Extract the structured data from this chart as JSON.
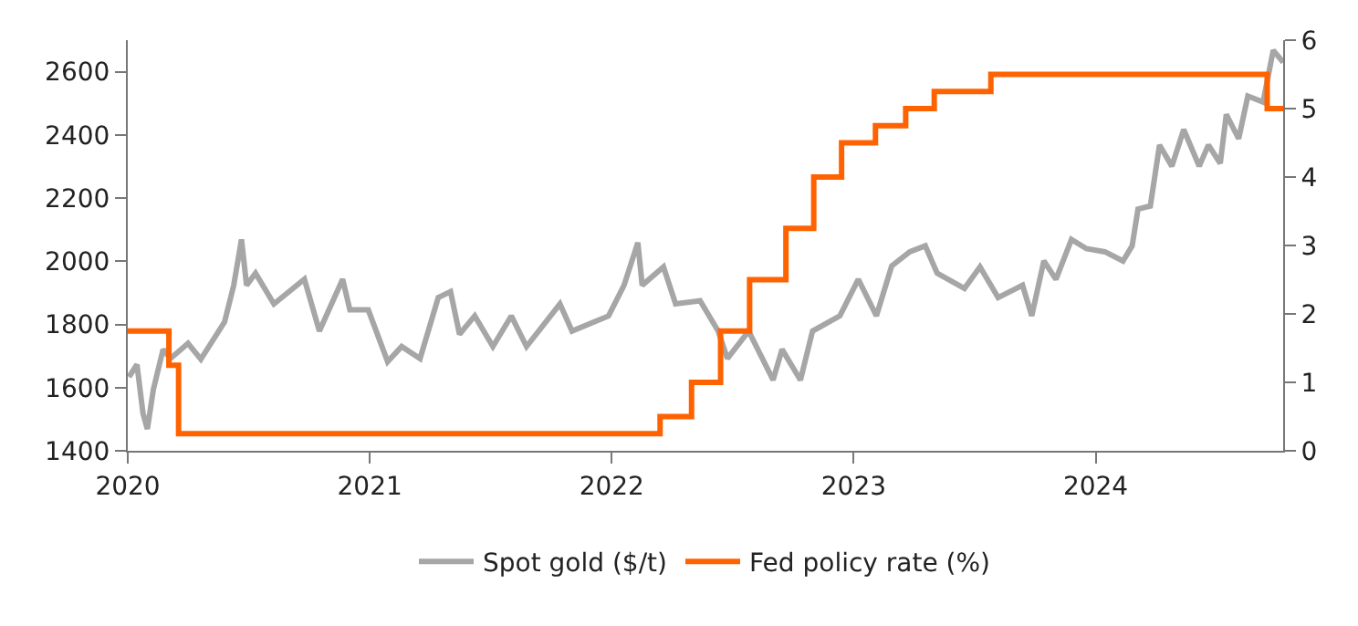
{
  "chart_data": {
    "type": "line",
    "xlim": [
      2020,
      2024.775
    ],
    "xticks": [
      2020,
      2021,
      2022,
      2023,
      2024
    ],
    "ylim": [
      1400,
      2700
    ],
    "yticks": [
      1400,
      1600,
      1800,
      2000,
      2200,
      2400,
      2600
    ],
    "y2lim": [
      0,
      6
    ],
    "y2ticks": [
      0,
      1,
      2,
      3,
      4,
      5,
      6
    ],
    "legend": "bottom",
    "line_style": "solid",
    "series": [
      {
        "name": "Spot gold ($/t)",
        "color": "#a6a6a6",
        "x": [
          2020.005,
          2020.038,
          2020.063,
          2020.081,
          2020.106,
          2020.146,
          2020.176,
          2020.249,
          2020.302,
          2020.4,
          2020.438,
          2020.47,
          2020.491,
          2020.528,
          2020.604,
          2020.73,
          2020.792,
          2020.888,
          2020.918,
          2020.994,
          2021.074,
          2021.132,
          2021.208,
          2021.283,
          2021.334,
          2021.371,
          2021.434,
          2021.509,
          2021.585,
          2021.648,
          2021.786,
          2021.836,
          2021.987,
          2022.051,
          2022.108,
          2022.126,
          2022.214,
          2022.264,
          2022.365,
          2022.44,
          2022.478,
          2022.566,
          2022.667,
          2022.704,
          2022.78,
          2022.83,
          2022.943,
          2023.019,
          2023.094,
          2023.157,
          2023.232,
          2023.296,
          2023.345,
          2023.458,
          2023.522,
          2023.597,
          2023.698,
          2023.736,
          2023.786,
          2023.836,
          2023.9,
          2023.962,
          2024.038,
          2024.113,
          2024.151,
          2024.175,
          2024.226,
          2024.264,
          2024.315,
          2024.364,
          2024.428,
          2024.466,
          2024.515,
          2024.54,
          2024.591,
          2024.629,
          2024.692,
          2024.734,
          2024.775
        ],
        "values": [
          1634,
          1673,
          1518,
          1469,
          1595,
          1721,
          1692,
          1740,
          1690,
          1808,
          1924,
          2069,
          1924,
          1962,
          1865,
          1943,
          1779,
          1943,
          1846,
          1846,
          1682,
          1730,
          1692,
          1885,
          1904,
          1769,
          1827,
          1730,
          1827,
          1730,
          1865,
          1779,
          1827,
          1924,
          2059,
          1924,
          1982,
          1865,
          1875,
          1779,
          1692,
          1779,
          1624,
          1721,
          1624,
          1779,
          1827,
          1943,
          1827,
          1985,
          2030,
          2049,
          1962,
          1914,
          1982,
          1885,
          1924,
          1827,
          2001,
          1943,
          2069,
          2040,
          2030,
          2001,
          2049,
          2165,
          2175,
          2368,
          2301,
          2417,
          2301,
          2368,
          2310,
          2465,
          2388,
          2523,
          2504,
          2668,
          2630
        ]
      },
      {
        "name": "Fed policy rate (%)",
        "color": "#ff6200",
        "type": "step",
        "axis": "y2",
        "x": [
          2020,
          2020.17,
          2020.21,
          2022.2,
          2022.33,
          2022.45,
          2022.57,
          2022.72,
          2022.835,
          2022.95,
          2023.09,
          2023.215,
          2023.333,
          2023.567,
          2024.709,
          2024.775
        ],
        "values": [
          1.75,
          1.25,
          0.25,
          0.5,
          1,
          1.75,
          2.5,
          3.25,
          4,
          4.5,
          4.75,
          5,
          5.25,
          5.5,
          5,
          5
        ]
      }
    ]
  }
}
